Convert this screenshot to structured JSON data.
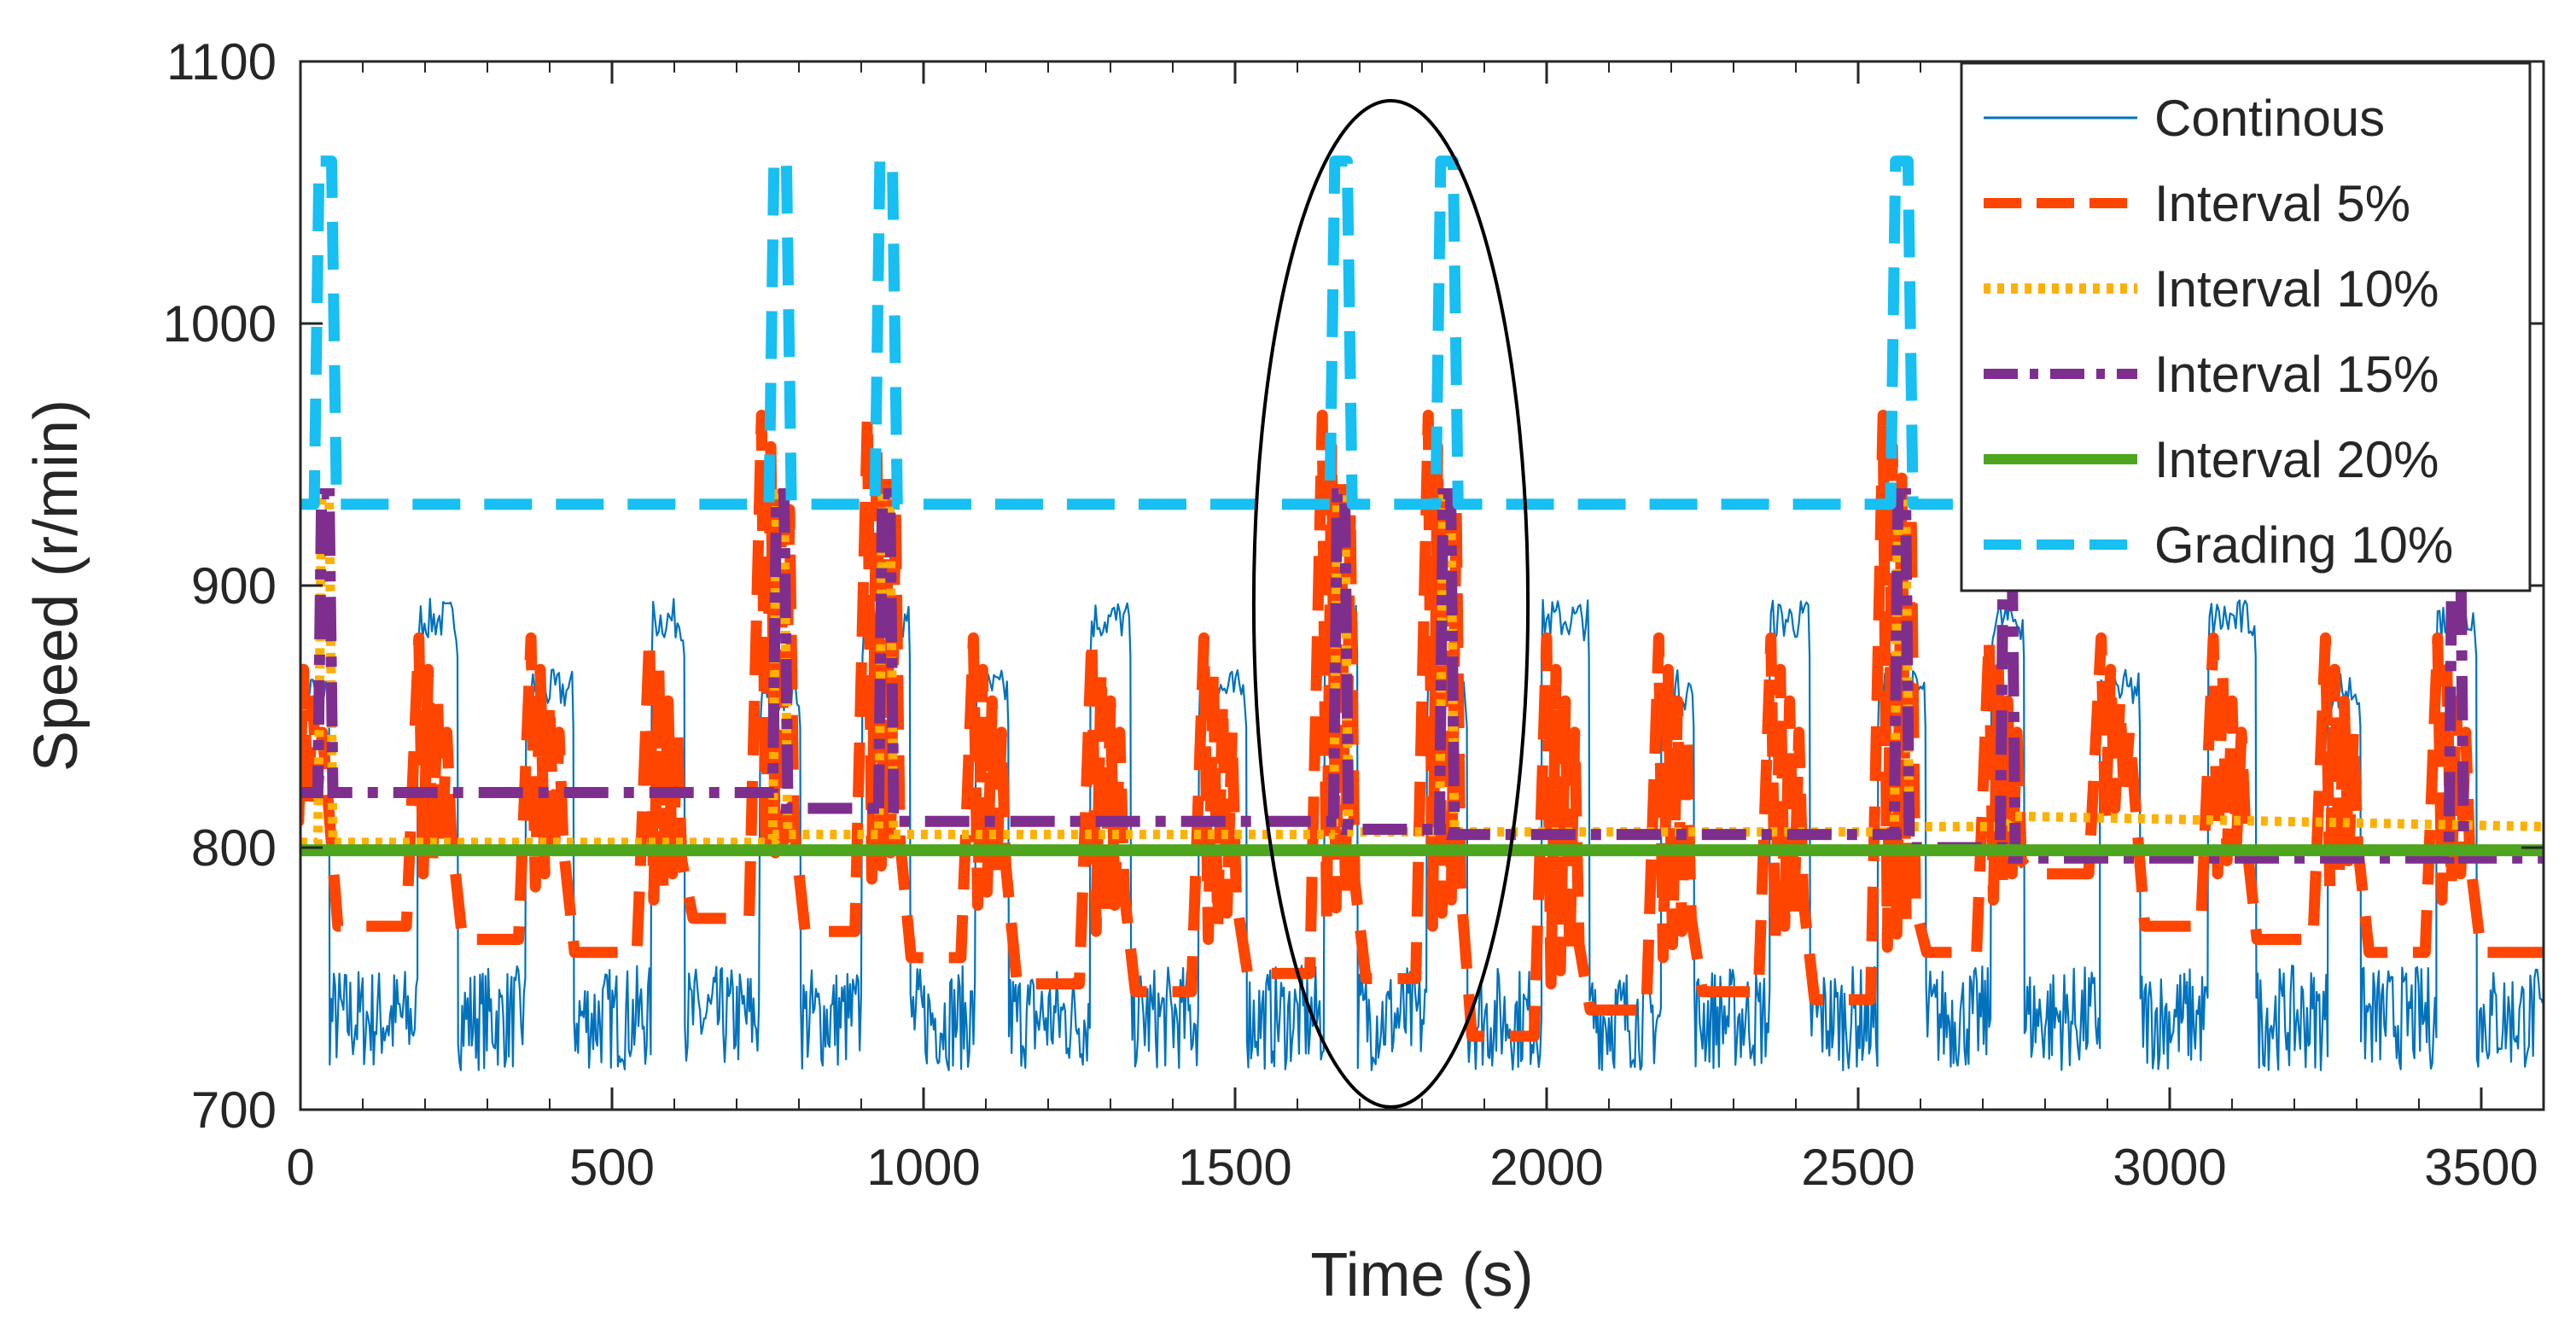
{
  "chart_data": {
    "type": "line",
    "title": "",
    "xlabel": "Time (s)",
    "ylabel": "Speed (r/min)",
    "xlim": [
      0,
      3600
    ],
    "ylim": [
      700,
      1100
    ],
    "xticks": [
      0,
      500,
      1000,
      1500,
      2000,
      2500,
      3000,
      3500
    ],
    "yticks": [
      700,
      800,
      900,
      1000,
      1100
    ],
    "x_tick_labels": [
      "0",
      "500",
      "1000",
      "1500",
      "2000",
      "2500",
      "3000",
      "3500"
    ],
    "y_tick_labels": [
      "700",
      "800",
      "900",
      "1000",
      "1100"
    ],
    "grid": false,
    "legend_position": "top-right",
    "annotation": {
      "type": "ellipse",
      "center_time_s": 1750,
      "center_speed": 893,
      "half_width_s": 220,
      "half_height_speed": 192
    },
    "cycle_centers": [
      20,
      220,
      400,
      590,
      770,
      940,
      1110,
      1300,
      1480,
      1670,
      1840,
      2030,
      2210,
      2390,
      2570,
      2740,
      2920,
      3100,
      3280,
      3460
    ],
    "spike_times": [
      40,
      770,
      940,
      1670,
      1840,
      2570
    ],
    "series": [
      {
        "name": "Continous",
        "color": "#0072BD",
        "style": "solid",
        "idle_speed_range": [
          715,
          755
        ],
        "plateau_speeds": [
          866,
          893
        ],
        "peak_speed": 895
      },
      {
        "name": "Interval 5%",
        "color": "#FF4500",
        "style": "dash",
        "idle_levels": [
          790,
          770,
          765,
          760,
          773,
          768,
          758,
          748,
          745,
          752,
          750,
          728,
          738,
          745,
          742,
          760
        ],
        "peak_speed": 965
      },
      {
        "name": "Interval 10%",
        "color": "#FFB000",
        "style": "dot",
        "x": [
          0,
          760,
          770,
          1660,
          1680,
          2560,
          2580,
          2740,
          2750,
          3600
        ],
        "values": [
          802,
          802,
          805,
          805,
          806,
          806,
          808,
          808,
          812,
          808
        ],
        "peak_speed": 935
      },
      {
        "name": "Interval 15%",
        "color": "#7E2F8E",
        "style": "dash-dot",
        "x": [
          0,
          760,
          780,
          940,
          950,
          1670,
          1680,
          1840,
          1850,
          2570,
          2580,
          2740,
          2750,
          3600
        ],
        "values": [
          821,
          821,
          815,
          815,
          810,
          810,
          807,
          807,
          805,
          805,
          800,
          800,
          796,
          796
        ],
        "peak_speed": 935
      },
      {
        "name": "Interval 20%",
        "color": "#4DA61E",
        "style": "solid",
        "x": [
          0,
          3600
        ],
        "values": [
          799,
          799
        ]
      },
      {
        "name": "Grading 10%",
        "color": "#17BFF2",
        "style": "dash",
        "base_speed": 931,
        "spike_speed": 1062
      }
    ]
  }
}
